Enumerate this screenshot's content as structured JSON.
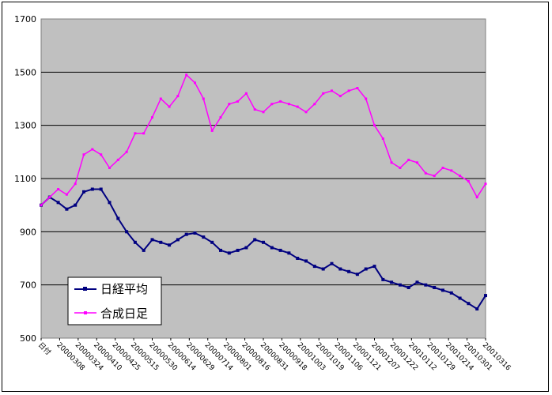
{
  "chart_data": {
    "type": "line",
    "title": "",
    "xlabel": "",
    "ylabel": "",
    "ylim": [
      500,
      1700
    ],
    "yticks": [
      500,
      700,
      900,
      1100,
      1300,
      1500,
      1700
    ],
    "grid": "horizontal",
    "legend": "bottom-left",
    "background": "#c0c0c0",
    "x_labels": [
      "日付",
      "20000308",
      "20000324",
      "20000410",
      "20000425",
      "20000515",
      "20000530",
      "20000614",
      "20000629",
      "20000714",
      "20000801",
      "20000816",
      "20000831",
      "20000918",
      "20001003",
      "20001019",
      "20001106",
      "20001121",
      "20001207",
      "20001222",
      "20010112",
      "20010129",
      "20010214",
      "20010301",
      "20010316"
    ],
    "series": [
      {
        "name": "日経平均",
        "color": "#000080",
        "values": [
          1000,
          1030,
          1010,
          985,
          1000,
          1050,
          1060,
          1060,
          1010,
          950,
          900,
          860,
          830,
          870,
          860,
          850,
          870,
          890,
          895,
          880,
          860,
          830,
          820,
          830,
          840,
          870,
          860,
          840,
          830,
          820,
          800,
          790,
          770,
          760,
          780,
          760,
          750,
          740,
          760,
          770,
          720,
          710,
          700,
          690,
          710,
          700,
          690,
          680,
          670,
          650,
          630,
          610,
          660
        ]
      },
      {
        "name": "合成日足",
        "color": "#ff00ff",
        "values": [
          1000,
          1030,
          1060,
          1040,
          1080,
          1190,
          1210,
          1190,
          1140,
          1170,
          1200,
          1270,
          1270,
          1330,
          1400,
          1370,
          1410,
          1490,
          1460,
          1400,
          1280,
          1330,
          1380,
          1390,
          1420,
          1360,
          1350,
          1380,
          1390,
          1380,
          1370,
          1350,
          1380,
          1420,
          1430,
          1410,
          1430,
          1440,
          1400,
          1300,
          1250,
          1160,
          1140,
          1170,
          1160,
          1120,
          1110,
          1140,
          1130,
          1110,
          1090,
          1030,
          1080
        ]
      }
    ]
  }
}
